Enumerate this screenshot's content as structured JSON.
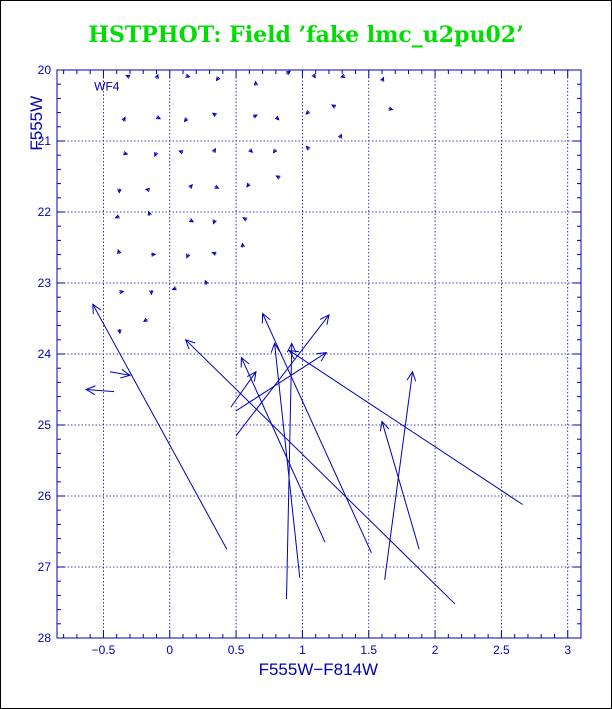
{
  "chart_data": {
    "type": "vector-field",
    "title": "HSTPHOT: Field ’fake lmc_u2pu02’",
    "xlabel": "F555W−F814W",
    "ylabel": "F555W",
    "annotation": "WF4",
    "xlim": [
      -0.85,
      3.1
    ],
    "ylim": [
      28,
      20
    ],
    "y_inverted": true,
    "grid": true,
    "x_ticks": [
      -0.5,
      0,
      0.5,
      1,
      1.5,
      2,
      2.5,
      3
    ],
    "x_tick_labels": [
      "−0.5",
      "0",
      "0.5",
      "1",
      "1.5",
      "2",
      "2.5",
      "3"
    ],
    "y_ticks": [
      20,
      21,
      22,
      23,
      24,
      25,
      26,
      27,
      28
    ],
    "y_tick_labels": [
      "20",
      "21",
      "22",
      "23",
      "24",
      "25",
      "26",
      "27",
      "28"
    ],
    "x_minor_step": 0.1,
    "y_minor_step": 0.2,
    "small_markers": [
      [
        -0.3,
        20.1
      ],
      [
        -0.1,
        20.12
      ],
      [
        0.12,
        20.08
      ],
      [
        0.37,
        20.1
      ],
      [
        0.65,
        20.22
      ],
      [
        0.88,
        20.05
      ],
      [
        1.08,
        20.06
      ],
      [
        1.32,
        20.08
      ],
      [
        1.6,
        20.16
      ],
      [
        -0.35,
        20.72
      ],
      [
        -0.1,
        20.66
      ],
      [
        0.13,
        20.68
      ],
      [
        0.35,
        20.64
      ],
      [
        0.63,
        20.66
      ],
      [
        0.8,
        20.66
      ],
      [
        1.05,
        20.58
      ],
      [
        1.25,
        20.52
      ],
      [
        1.65,
        20.54
      ],
      [
        -0.35,
        21.17
      ],
      [
        -0.1,
        21.16
      ],
      [
        0.1,
        21.16
      ],
      [
        0.33,
        21.16
      ],
      [
        0.6,
        21.12
      ],
      [
        0.8,
        21.12
      ],
      [
        1.05,
        21.12
      ],
      [
        1.28,
        20.96
      ],
      [
        -0.38,
        21.67
      ],
      [
        -0.15,
        21.69
      ],
      [
        0.15,
        21.66
      ],
      [
        0.34,
        21.64
      ],
      [
        0.6,
        21.6
      ],
      [
        0.83,
        21.52
      ],
      [
        -0.38,
        22.06
      ],
      [
        -0.15,
        22.05
      ],
      [
        0.15,
        22.11
      ],
      [
        0.34,
        22.11
      ],
      [
        0.58,
        22.11
      ],
      [
        -0.38,
        22.59
      ],
      [
        -0.14,
        22.6
      ],
      [
        0.14,
        22.59
      ],
      [
        0.35,
        22.59
      ],
      [
        0.55,
        22.5
      ],
      [
        -0.38,
        23.13
      ],
      [
        -0.14,
        23.1
      ],
      [
        0.05,
        23.07
      ],
      [
        0.28,
        23.02
      ],
      [
        -0.38,
        23.65
      ],
      [
        -0.17,
        23.51
      ]
    ],
    "vectors": [
      [
        0.43,
        26.75,
        -0.58,
        23.3
      ],
      [
        -0.45,
        24.25,
        -0.3,
        24.3
      ],
      [
        -0.42,
        24.53,
        -0.63,
        24.5
      ],
      [
        2.15,
        27.52,
        0.12,
        23.8
      ],
      [
        1.17,
        26.65,
        0.54,
        24.05
      ],
      [
        1.52,
        26.8,
        0.7,
        23.43
      ],
      [
        0.98,
        27.15,
        0.79,
        23.85
      ],
      [
        0.88,
        27.45,
        0.92,
        23.85
      ],
      [
        2.66,
        26.12,
        0.9,
        23.95
      ],
      [
        0.5,
        25.15,
        1.2,
        23.45
      ],
      [
        0.5,
        24.8,
        1.18,
        23.98
      ],
      [
        1.88,
        26.75,
        1.6,
        24.95
      ],
      [
        1.62,
        27.18,
        1.83,
        24.25
      ],
      [
        0.46,
        24.75,
        0.65,
        24.25
      ]
    ],
    "colors": {
      "title": "#00dd00",
      "axes": "#0000bb",
      "grid": "#0000bb",
      "vectors": "#0000bb",
      "frame": "#000000"
    }
  }
}
